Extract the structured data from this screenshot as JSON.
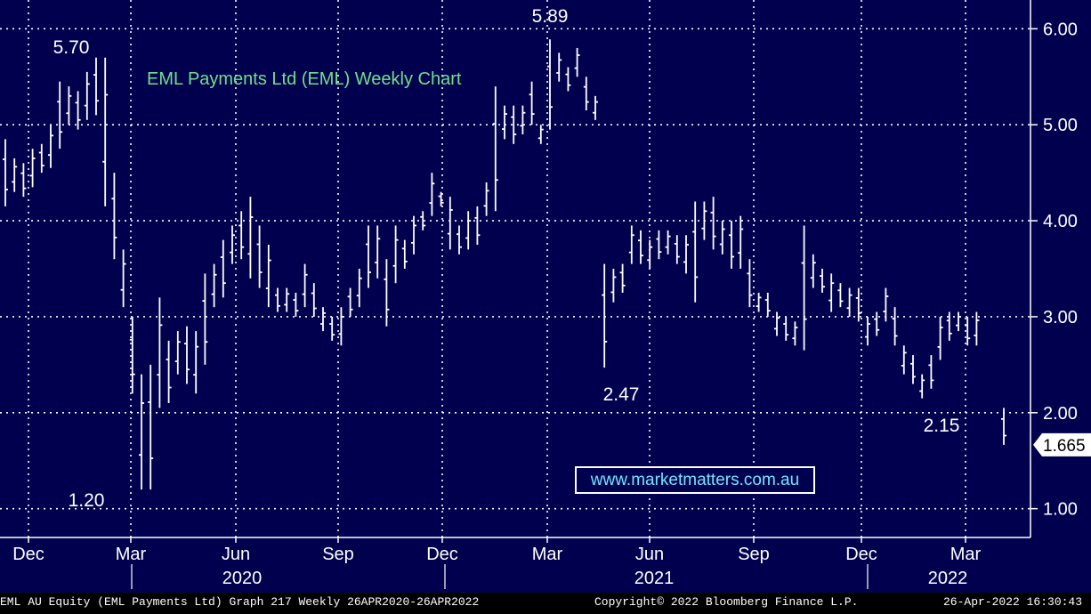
{
  "chart_data": {
    "type": "bar",
    "subtype": "ohlc",
    "title": "EML Payments Ltd (EML) Weekly Chart",
    "ylim": [
      0.7,
      6.3
    ],
    "y_ticks": [
      "1.00",
      "2.00",
      "3.00",
      "4.00",
      "5.00",
      "6.00"
    ],
    "x_month_labels": [
      "Dec",
      "Mar",
      "Jun",
      "Sep",
      "Dec",
      "Mar",
      "Jun",
      "Sep",
      "Dec",
      "Mar"
    ],
    "x_year_labels": [
      "2020",
      "2021",
      "2022"
    ],
    "last_price": "1.665",
    "annotations": [
      {
        "label": "5.70",
        "value": 5.7
      },
      {
        "label": "1.20",
        "value": 1.2
      },
      {
        "label": "5.89",
        "value": 5.89
      },
      {
        "label": "2.47",
        "value": 2.47
      },
      {
        "label": "2.15",
        "value": 2.15
      }
    ],
    "weekly_ranges": [
      {
        "low": 4.15,
        "high": 4.85
      },
      {
        "low": 4.3,
        "high": 4.65
      },
      {
        "low": 4.25,
        "high": 4.6
      },
      {
        "low": 4.35,
        "high": 4.75
      },
      {
        "low": 4.5,
        "high": 4.8
      },
      {
        "low": 4.55,
        "high": 5.0
      },
      {
        "low": 4.75,
        "high": 5.45
      },
      {
        "low": 5.0,
        "high": 5.4
      },
      {
        "low": 4.95,
        "high": 5.35
      },
      {
        "low": 5.05,
        "high": 5.55
      },
      {
        "low": 5.1,
        "high": 5.7
      },
      {
        "low": 4.15,
        "high": 5.7
      },
      {
        "low": 3.6,
        "high": 4.5
      },
      {
        "low": 3.1,
        "high": 3.7
      },
      {
        "low": 2.2,
        "high": 3.0
      },
      {
        "low": 1.2,
        "high": 2.4
      },
      {
        "low": 1.2,
        "high": 2.5
      },
      {
        "low": 2.05,
        "high": 3.2
      },
      {
        "low": 2.1,
        "high": 2.75
      },
      {
        "low": 2.4,
        "high": 2.85
      },
      {
        "low": 2.3,
        "high": 2.9
      },
      {
        "low": 2.2,
        "high": 2.85
      },
      {
        "low": 2.5,
        "high": 3.45
      },
      {
        "low": 3.1,
        "high": 3.55
      },
      {
        "low": 3.2,
        "high": 3.8
      },
      {
        "low": 3.55,
        "high": 3.95
      },
      {
        "low": 3.6,
        "high": 4.1
      },
      {
        "low": 3.4,
        "high": 4.25
      },
      {
        "low": 3.3,
        "high": 3.95
      },
      {
        "low": 3.1,
        "high": 3.75
      },
      {
        "low": 3.05,
        "high": 3.3
      },
      {
        "low": 3.05,
        "high": 3.3
      },
      {
        "low": 3.0,
        "high": 3.25
      },
      {
        "low": 3.1,
        "high": 3.55
      },
      {
        "low": 3.0,
        "high": 3.35
      },
      {
        "low": 2.85,
        "high": 3.1
      },
      {
        "low": 2.75,
        "high": 3.0
      },
      {
        "low": 2.7,
        "high": 3.1
      },
      {
        "low": 3.0,
        "high": 3.3
      },
      {
        "low": 3.1,
        "high": 3.5
      },
      {
        "low": 3.3,
        "high": 3.95
      },
      {
        "low": 3.4,
        "high": 3.95
      },
      {
        "low": 2.9,
        "high": 3.6
      },
      {
        "low": 3.35,
        "high": 3.95
      },
      {
        "low": 3.5,
        "high": 3.8
      },
      {
        "low": 3.65,
        "high": 4.05
      },
      {
        "low": 3.9,
        "high": 4.1
      },
      {
        "low": 4.05,
        "high": 4.5
      },
      {
        "low": 4.15,
        "high": 4.3
      },
      {
        "low": 3.7,
        "high": 4.25
      },
      {
        "low": 3.65,
        "high": 3.95
      },
      {
        "low": 3.7,
        "high": 4.1
      },
      {
        "low": 3.75,
        "high": 4.15
      },
      {
        "low": 4.05,
        "high": 4.4
      },
      {
        "low": 4.1,
        "high": 5.4
      },
      {
        "low": 4.85,
        "high": 5.2
      },
      {
        "low": 4.8,
        "high": 5.2
      },
      {
        "low": 4.9,
        "high": 5.2
      },
      {
        "low": 5.0,
        "high": 5.45
      },
      {
        "low": 4.8,
        "high": 5.0
      },
      {
        "low": 4.95,
        "high": 5.89
      },
      {
        "low": 5.45,
        "high": 5.75
      },
      {
        "low": 5.35,
        "high": 5.6
      },
      {
        "low": 5.5,
        "high": 5.8
      },
      {
        "low": 5.15,
        "high": 5.5
      },
      {
        "low": 5.05,
        "high": 5.3
      },
      {
        "low": 2.47,
        "high": 3.55
      },
      {
        "low": 3.15,
        "high": 3.5
      },
      {
        "low": 3.25,
        "high": 3.55
      },
      {
        "low": 3.55,
        "high": 3.95
      },
      {
        "low": 3.55,
        "high": 3.9
      },
      {
        "low": 3.5,
        "high": 3.8
      },
      {
        "low": 3.6,
        "high": 3.9
      },
      {
        "low": 3.65,
        "high": 3.9
      },
      {
        "low": 3.55,
        "high": 3.85
      },
      {
        "low": 3.45,
        "high": 3.85
      },
      {
        "low": 3.15,
        "high": 4.2
      },
      {
        "low": 3.8,
        "high": 4.2
      },
      {
        "low": 3.7,
        "high": 4.25
      },
      {
        "low": 3.65,
        "high": 4.0
      },
      {
        "low": 3.5,
        "high": 4.0
      },
      {
        "low": 3.5,
        "high": 4.05
      },
      {
        "low": 3.1,
        "high": 3.6
      },
      {
        "low": 3.05,
        "high": 3.25
      },
      {
        "low": 3.0,
        "high": 3.25
      },
      {
        "low": 2.8,
        "high": 3.05
      },
      {
        "low": 2.75,
        "high": 3.0
      },
      {
        "low": 2.7,
        "high": 2.95
      },
      {
        "low": 2.65,
        "high": 3.95
      },
      {
        "low": 3.3,
        "high": 3.65
      },
      {
        "low": 3.25,
        "high": 3.5
      },
      {
        "low": 3.05,
        "high": 3.45
      },
      {
        "low": 3.1,
        "high": 3.35
      },
      {
        "low": 3.0,
        "high": 3.3
      },
      {
        "low": 2.95,
        "high": 3.3
      },
      {
        "low": 2.7,
        "high": 3.0
      },
      {
        "low": 2.8,
        "high": 3.05
      },
      {
        "low": 2.95,
        "high": 3.3
      },
      {
        "low": 2.7,
        "high": 3.1
      },
      {
        "low": 2.4,
        "high": 2.7
      },
      {
        "low": 2.3,
        "high": 2.6
      },
      {
        "low": 2.15,
        "high": 2.4
      },
      {
        "low": 2.25,
        "high": 2.6
      },
      {
        "low": 2.55,
        "high": 3.0
      },
      {
        "low": 2.75,
        "high": 3.05
      },
      {
        "low": 2.85,
        "high": 3.05
      },
      {
        "low": 2.7,
        "high": 3.0
      },
      {
        "low": 2.7,
        "high": 3.05
      },
      {
        "low": null,
        "high": null
      },
      {
        "low": null,
        "high": null
      },
      {
        "low": 1.665,
        "high": 2.05
      }
    ]
  },
  "watermark": "www.marketmatters.com.au",
  "footer": {
    "left": "EML AU Equity (EML Payments Ltd) Graph 217  Weekly 26APR2020-26APR2022",
    "center": "Copyright© 2022 Bloomberg Finance L.P.",
    "right": "26-Apr-2022 16:30:43"
  },
  "colors": {
    "background": "#00004e",
    "bars": "#ffffff",
    "grid": "#ffffff",
    "title": "#6fe08a",
    "watermark": "#6fe6ff"
  }
}
